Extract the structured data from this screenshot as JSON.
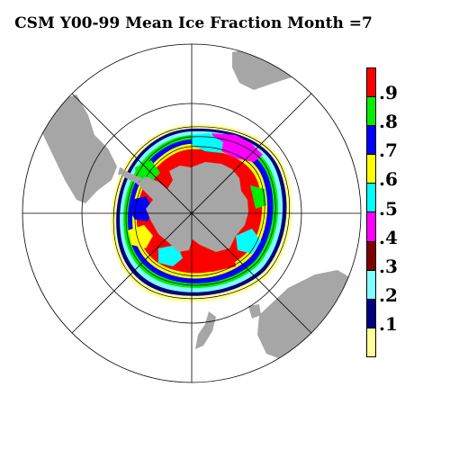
{
  "title": "CSM Y00-99 Mean Ice Fraction Month =7",
  "colors": {
    "land": "#a6a6a6",
    "grid": "#000000",
    "background": "#ffffff"
  },
  "legend": [
    {
      "label": ".9",
      "color": "#ff0000"
    },
    {
      "label": ".8",
      "color": "#00ee00"
    },
    {
      "label": ".7",
      "color": "#0000ff"
    },
    {
      "label": ".6",
      "color": "#ffff00"
    },
    {
      "label": ".5",
      "color": "#00ffff"
    },
    {
      "label": ".4",
      "color": "#ff00ff"
    },
    {
      "label": ".3",
      "color": "#800000"
    },
    {
      "label": ".2",
      "color": "#80ffff"
    },
    {
      "label": ".1",
      "color": "#000080"
    },
    {
      "label": "",
      "color": "#ffff99"
    }
  ]
}
